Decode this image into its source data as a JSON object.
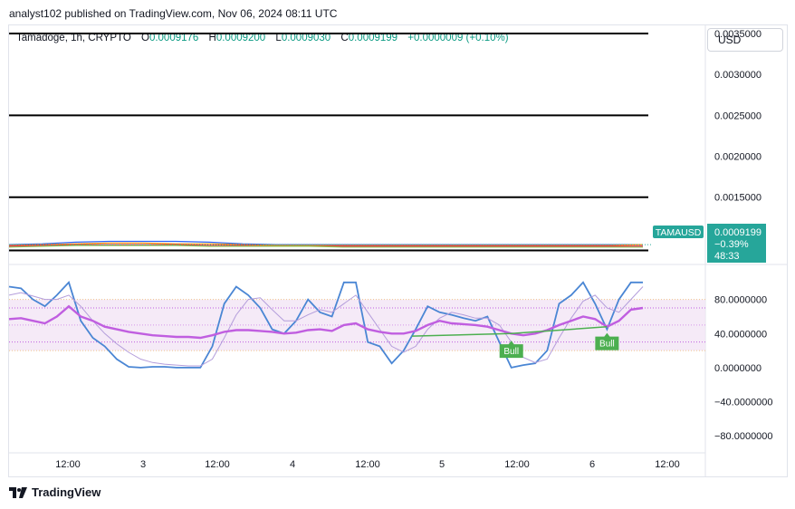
{
  "header": {
    "published_text": "analyst102 published on TradingView.com, Nov 06, 2024 08:11 UTC"
  },
  "legend": {
    "symbol": "Tamadoge, 1h, CRYPTO",
    "o_label": "O",
    "o_value": "0.0009176",
    "h_label": "H",
    "h_value": "0.0009200",
    "l_label": "L",
    "l_value": "0.0009030",
    "c_label": "C",
    "c_value": "0.0009199",
    "change": "+0.0000009 (+0.10%)"
  },
  "currency_selector": {
    "label": "USD"
  },
  "price_tag": {
    "symbol": "TAMAUSD",
    "price": "0.0009199",
    "change_pct": "−0.39%",
    "countdown": "48:33"
  },
  "footer": {
    "brand": "TradingView"
  },
  "colors": {
    "accent_teal": "#26a69a",
    "stoch_k": "#4a86d4",
    "stoch_d": "#b39ddb",
    "rsi": "#c05ee0",
    "divergence": "#4caf50",
    "band_fill": "#f3e5f5",
    "up_text": "#089981"
  },
  "chart_data": [
    {
      "type": "line",
      "panel": "price",
      "ylim": [
        0.0007,
        0.0036
      ],
      "y_tick_labels": [
        "0.0035000",
        "0.0030000",
        "0.0025000",
        "0.0020000",
        "0.0015000"
      ],
      "y_tick_values": [
        0.0035,
        0.003,
        0.0025,
        0.002,
        0.0015
      ],
      "horizontal_levels": [
        0.0035,
        0.0025,
        0.0015,
        0.00085
      ],
      "last_price": 0.0009199,
      "x_tick_labels": [
        "12:00",
        "3",
        "12:00",
        "4",
        "12:00",
        "5",
        "12:00",
        "6",
        "12:00"
      ],
      "series": [
        {
          "color": "#2962ff",
          "values": [
            0.00092,
            0.00093,
            0.00095,
            0.00096,
            0.00096,
            0.00096,
            0.00095,
            0.00093,
            0.00092,
            0.00092,
            0.00092,
            0.00092,
            0.00092,
            0.00092,
            0.00092,
            0.00092,
            0.00092,
            0.00092,
            0.00092,
            0.00092
          ]
        },
        {
          "color": "#ff9800",
          "values": [
            0.00091,
            0.00092,
            0.00093,
            0.00094,
            0.00094,
            0.00093,
            0.00093,
            0.00092,
            0.00091,
            0.00091,
            0.00091,
            0.00091,
            0.00091,
            0.00091,
            0.00091,
            0.00091,
            0.00091,
            0.00091,
            0.00091,
            0.00092
          ]
        },
        {
          "color": "#e91e63",
          "values": [
            0.0009,
            0.00091,
            0.00092,
            0.00092,
            0.00092,
            0.00092,
            0.00091,
            0.00091,
            0.0009,
            0.0009,
            0.0009,
            0.0009,
            0.0009,
            0.0009,
            0.0009,
            0.0009,
            0.0009,
            0.0009,
            0.0009,
            0.0009
          ]
        },
        {
          "color": "#8bc34a",
          "values": [
            0.00089,
            0.0009,
            0.00091,
            0.00091,
            0.00091,
            0.00091,
            0.0009,
            0.0009,
            0.0009,
            0.0009,
            0.00089,
            0.00089,
            0.00089,
            0.00089,
            0.00089,
            0.00089,
            0.00089,
            0.00089,
            0.00089,
            0.00089
          ]
        }
      ]
    },
    {
      "type": "line",
      "panel": "oscillator",
      "ylim": [
        -100,
        120
      ],
      "y_tick_labels": [
        "80.0000000",
        "40.0000000",
        "0.0000000",
        "−40.0000000",
        "−80.0000000"
      ],
      "y_tick_values": [
        80,
        40,
        0,
        -40,
        -80
      ],
      "band": [
        20,
        80
      ],
      "series": [
        {
          "color": "#4a86d4",
          "values": [
            95,
            93,
            80,
            72,
            85,
            100,
            55,
            35,
            25,
            10,
            1,
            0,
            1,
            1,
            0,
            0,
            0,
            25,
            75,
            95,
            85,
            70,
            45,
            40,
            55,
            80,
            65,
            60,
            100,
            100,
            30,
            25,
            5,
            20,
            45,
            72,
            65,
            62,
            58,
            55,
            60,
            30,
            0,
            3,
            5,
            20,
            75,
            85,
            100,
            75,
            45,
            80,
            100,
            100
          ]
        },
        {
          "color": "#b39ddb",
          "values": [
            85,
            88,
            84,
            80,
            80,
            85,
            72,
            55,
            40,
            28,
            18,
            10,
            6,
            4,
            3,
            2,
            2,
            10,
            35,
            62,
            80,
            82,
            68,
            55,
            55,
            62,
            68,
            65,
            75,
            85,
            65,
            45,
            25,
            18,
            25,
            45,
            58,
            65,
            62,
            58,
            58,
            50,
            30,
            12,
            6,
            10,
            35,
            58,
            78,
            85,
            70,
            65,
            80,
            95
          ]
        },
        {
          "color": "#c05ee0",
          "values": [
            57,
            58,
            55,
            52,
            60,
            72,
            60,
            55,
            48,
            45,
            42,
            40,
            38,
            37,
            36,
            36,
            35,
            38,
            42,
            44,
            44,
            43,
            42,
            40,
            41,
            44,
            45,
            43,
            50,
            52,
            45,
            42,
            40,
            40,
            43,
            50,
            55,
            52,
            51,
            50,
            48,
            44,
            40,
            38,
            40,
            44,
            50,
            55,
            60,
            57,
            48,
            55,
            68,
            70
          ]
        }
      ],
      "signals": [
        {
          "label": "Bull",
          "value": 38
        },
        {
          "label": "Bull",
          "value": 47
        }
      ]
    }
  ]
}
